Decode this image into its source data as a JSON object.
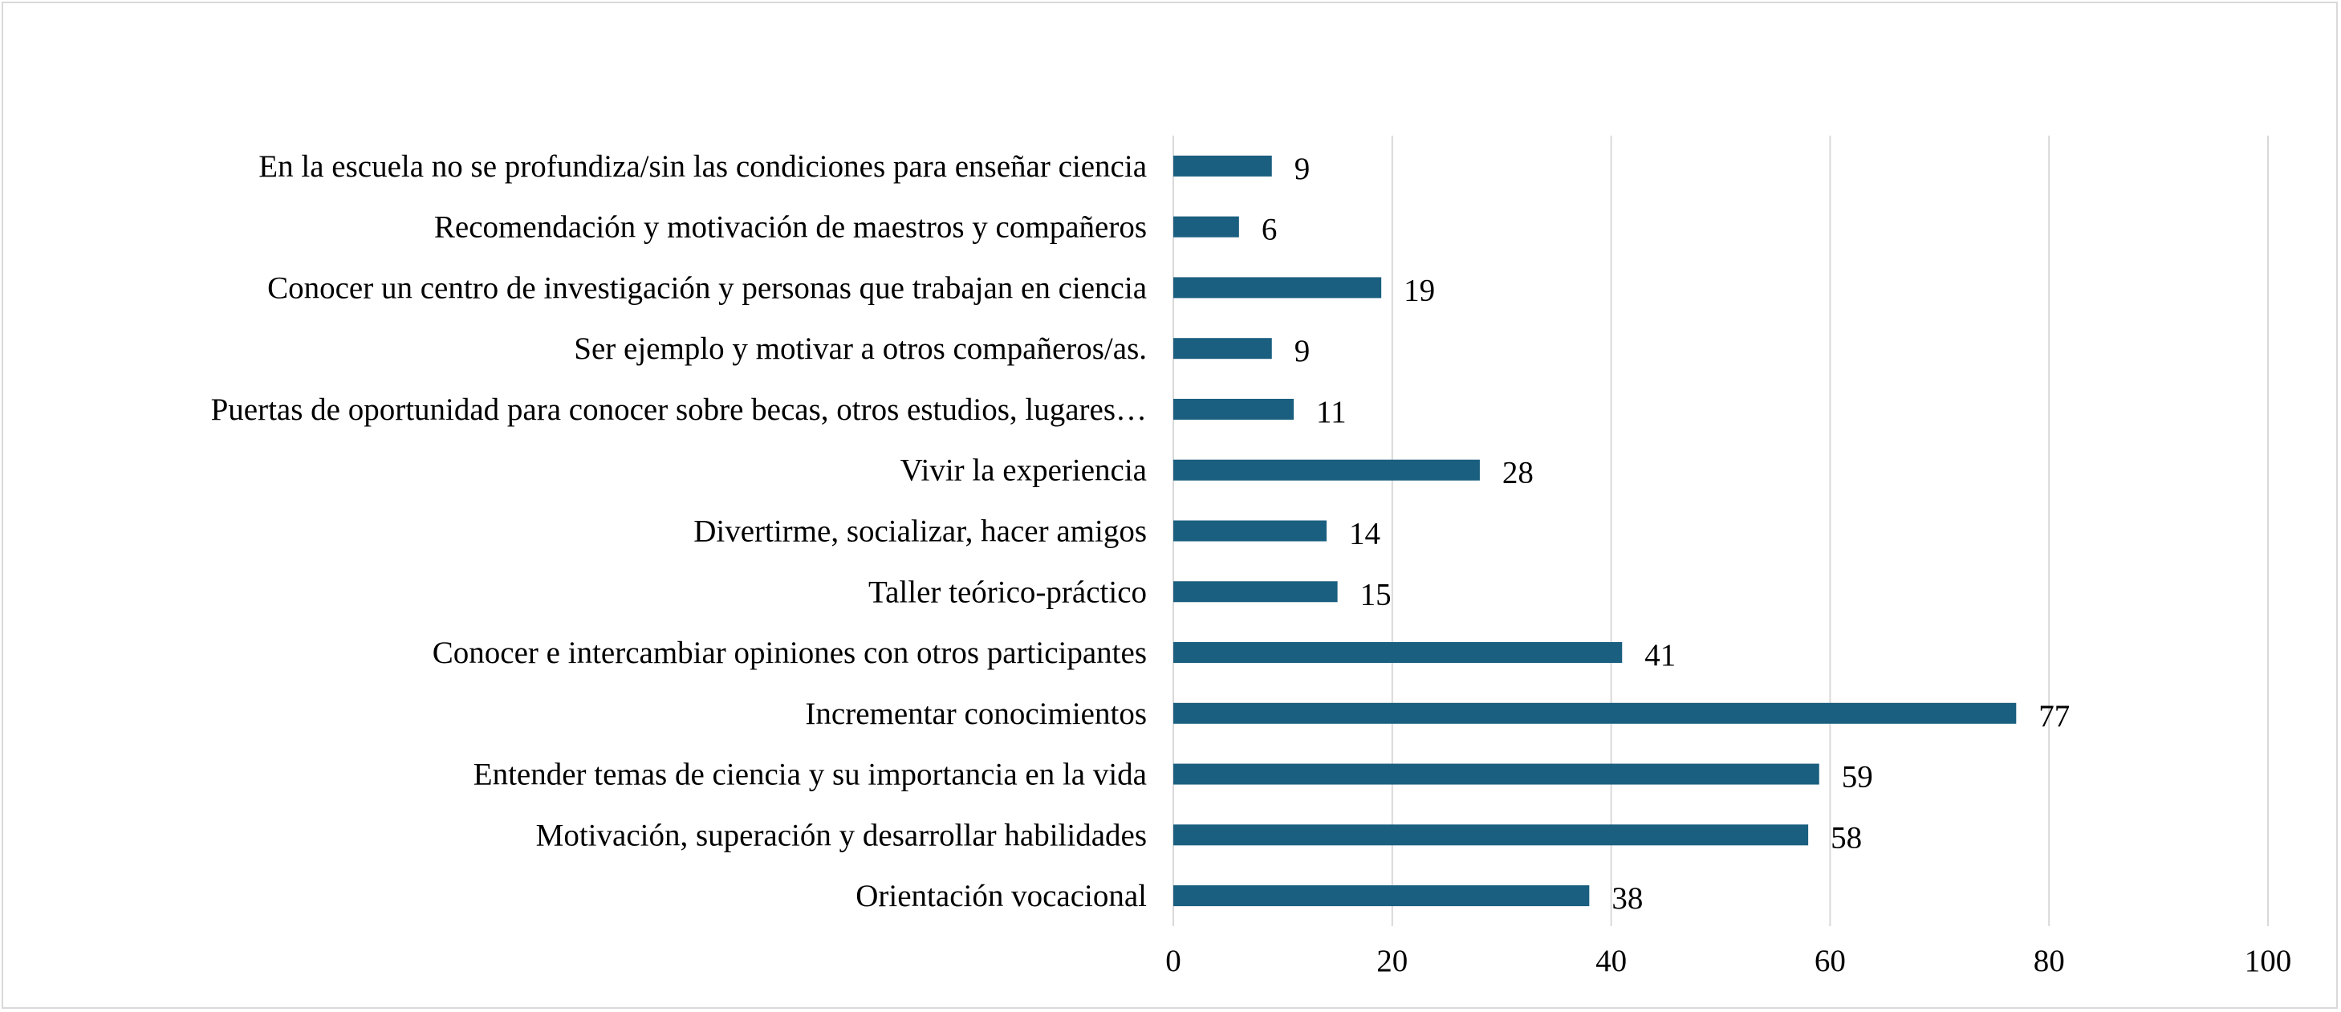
{
  "chart_data": {
    "type": "bar",
    "orientation": "horizontal",
    "title": "",
    "xlabel": "",
    "ylabel": "",
    "categories": [
      "En la escuela no se profundiza/sin las condiciones para enseñar ciencia",
      "Recomendación y motivación de maestros y compañeros",
      "Conocer un centro de investigación y personas que trabajan en ciencia",
      "Ser ejemplo y motivar a otros compañeros/as.",
      "Puertas de oportunidad para conocer sobre becas, otros estudios,  lugares…",
      "Vivir la experiencia",
      "Divertirme, socializar, hacer amigos",
      "Taller teórico-práctico",
      "Conocer e intercambiar opiniones con otros participantes",
      "Incrementar conocimientos",
      "Entender temas de ciencia y su importancia en la vida",
      "Motivación, superación y desarrollar habilidades",
      "Orientación vocacional"
    ],
    "values": [
      9,
      6,
      19,
      9,
      11,
      28,
      14,
      15,
      41,
      77,
      59,
      58,
      38
    ],
    "xlim": [
      0,
      100
    ],
    "xticks": [
      0,
      20,
      40,
      60,
      80,
      100
    ],
    "grid": "vertical",
    "legend": "none",
    "colors": {
      "bar": "#1a5f7f",
      "grid": "#d9d9d9",
      "frame": "#d9d9d9",
      "text": "#000000"
    }
  }
}
